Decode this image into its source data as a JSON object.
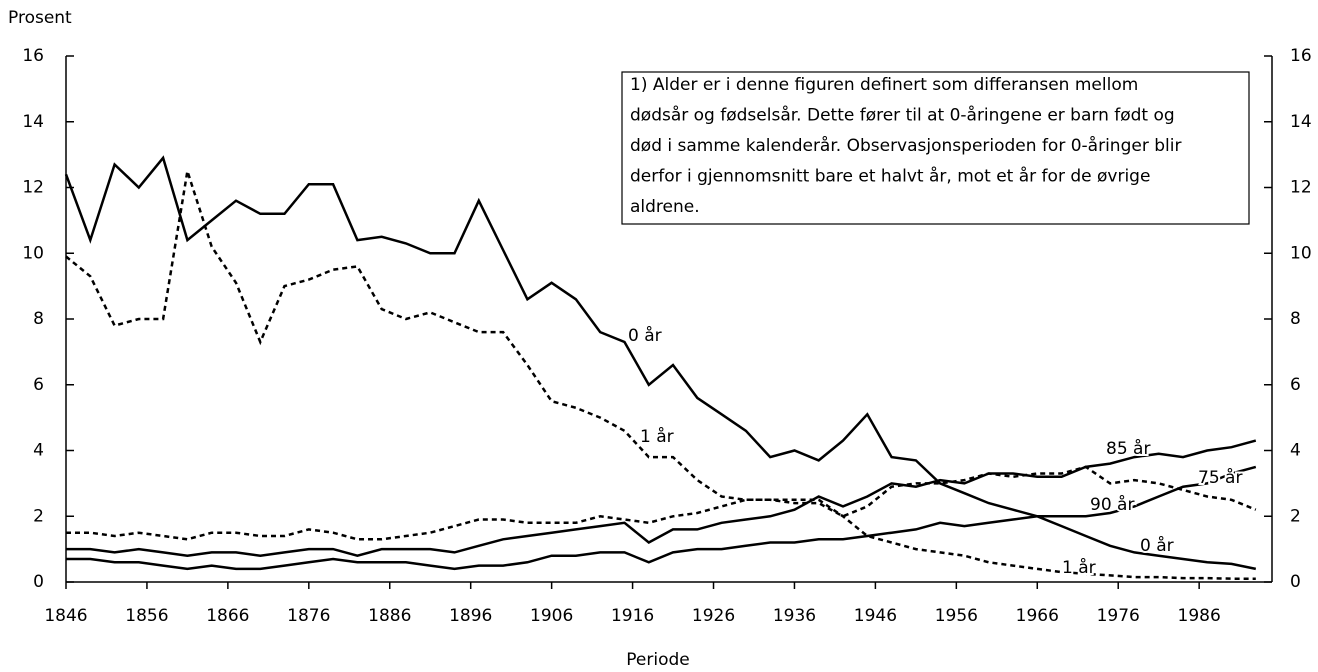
{
  "chart_data": {
    "type": "line",
    "y_label": "Prosent",
    "x_label": "Periode",
    "xlim": [
      1846,
      1995
    ],
    "xticks": [
      1846,
      1856,
      1866,
      1876,
      1886,
      1896,
      1906,
      1916,
      1926,
      1936,
      1946,
      1956,
      1966,
      1976,
      1986
    ],
    "ylim": [
      0,
      16
    ],
    "yticks": [
      0,
      2,
      4,
      6,
      8,
      10,
      12,
      14,
      16
    ],
    "y2lim": [
      0,
      16
    ],
    "y2ticks": [
      0,
      2,
      4,
      6,
      8,
      10,
      12,
      14,
      16
    ],
    "x": [
      1846,
      1849,
      1852,
      1855,
      1858,
      1861,
      1864,
      1867,
      1870,
      1873,
      1876,
      1879,
      1882,
      1885,
      1888,
      1891,
      1894,
      1897,
      1900,
      1903,
      1906,
      1909,
      1912,
      1915,
      1918,
      1921,
      1924,
      1927,
      1930,
      1933,
      1936,
      1939,
      1942,
      1945,
      1948,
      1951,
      1954,
      1957,
      1960,
      1963,
      1966,
      1969,
      1972,
      1975,
      1978,
      1981,
      1984,
      1987,
      1990,
      1993
    ],
    "series": [
      {
        "name": "0 år",
        "color": "#000000",
        "style": "solid",
        "values": [
          12.4,
          10.4,
          12.7,
          12.0,
          12.9,
          10.4,
          11.0,
          11.6,
          11.2,
          11.2,
          12.1,
          12.1,
          10.4,
          10.5,
          10.3,
          10.0,
          10.0,
          11.6,
          10.1,
          8.6,
          9.1,
          8.6,
          7.6,
          7.3,
          6.0,
          6.6,
          5.6,
          5.1,
          4.6,
          3.8,
          4.0,
          3.7,
          4.3,
          5.1,
          3.8,
          3.7,
          3.0,
          2.7,
          2.4,
          2.2,
          2.0,
          1.7,
          1.4,
          1.1,
          0.9,
          0.8,
          0.7,
          0.6,
          0.55,
          0.4
        ]
      },
      {
        "name": "1 år",
        "color": "#000000",
        "style": "dashed",
        "values": [
          9.9,
          9.3,
          7.8,
          8.0,
          8.0,
          12.5,
          10.2,
          9.1,
          7.3,
          9.0,
          9.2,
          9.5,
          9.6,
          8.3,
          8.0,
          8.2,
          7.9,
          7.6,
          7.6,
          6.6,
          5.5,
          5.3,
          5.0,
          4.6,
          3.8,
          3.8,
          3.1,
          2.6,
          2.5,
          2.5,
          2.5,
          2.5,
          2.0,
          1.4,
          1.2,
          1.0,
          0.9,
          0.8,
          0.6,
          0.5,
          0.4,
          0.3,
          0.25,
          0.2,
          0.15,
          0.15,
          0.12,
          0.12,
          0.1,
          0.1
        ]
      },
      {
        "name": "85 år",
        "color": "#000000",
        "style": "solid",
        "values": [
          1.0,
          1.0,
          0.9,
          1.0,
          0.9,
          0.8,
          0.9,
          0.9,
          0.8,
          0.9,
          1.0,
          1.0,
          0.8,
          1.0,
          1.0,
          1.0,
          0.9,
          1.1,
          1.3,
          1.4,
          1.5,
          1.6,
          1.7,
          1.8,
          1.2,
          1.6,
          1.6,
          1.8,
          1.9,
          2.0,
          2.2,
          2.6,
          2.3,
          2.6,
          3.0,
          2.9,
          3.1,
          3.0,
          3.3,
          3.3,
          3.2,
          3.2,
          3.5,
          3.6,
          3.8,
          3.9,
          3.8,
          4.0,
          4.1,
          4.3
        ]
      },
      {
        "name": "90 år",
        "color": "#000000",
        "style": "solid",
        "values": [
          0.7,
          0.7,
          0.6,
          0.6,
          0.5,
          0.4,
          0.5,
          0.4,
          0.4,
          0.5,
          0.6,
          0.7,
          0.6,
          0.6,
          0.6,
          0.5,
          0.4,
          0.5,
          0.5,
          0.6,
          0.8,
          0.8,
          0.9,
          0.9,
          0.6,
          0.9,
          1.0,
          1.0,
          1.1,
          1.2,
          1.2,
          1.3,
          1.3,
          1.4,
          1.5,
          1.6,
          1.8,
          1.7,
          1.8,
          1.9,
          2.0,
          2.0,
          2.0,
          2.1,
          2.3,
          2.6,
          2.9,
          3.0,
          3.3,
          3.5
        ]
      },
      {
        "name": "75 år",
        "color": "#000000",
        "style": "dashed",
        "values": [
          1.5,
          1.5,
          1.4,
          1.5,
          1.4,
          1.3,
          1.5,
          1.5,
          1.4,
          1.4,
          1.6,
          1.5,
          1.3,
          1.3,
          1.4,
          1.5,
          1.7,
          1.9,
          1.9,
          1.8,
          1.8,
          1.8,
          2.0,
          1.9,
          1.8,
          2.0,
          2.1,
          2.3,
          2.5,
          2.5,
          2.4,
          2.4,
          2.0,
          2.3,
          2.9,
          3.0,
          3.0,
          3.1,
          3.3,
          3.2,
          3.3,
          3.3,
          3.5,
          3.0,
          3.1,
          3.0,
          2.8,
          2.6,
          2.5,
          2.2
        ]
      }
    ],
    "line_labels": [
      "0 år",
      "1 år",
      "85 år",
      "75 år",
      "90 år",
      "0 år",
      "1 år"
    ],
    "note": [
      "1) Alder er i denne figuren definert som differansen mellom",
      "dødsår og fødselsår. Dette fører til at 0-åringene er barn født og",
      "død i samme kalenderår. Observasjonsperioden for 0-åringer blir",
      "derfor i gjennomsnitt bare et halvt år, mot et år for de øvrige",
      "aldrene."
    ]
  }
}
